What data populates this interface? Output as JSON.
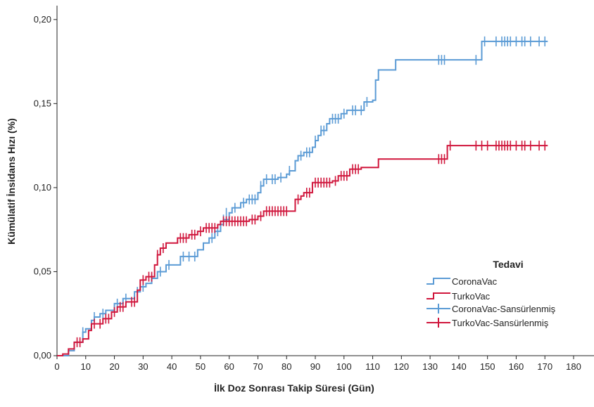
{
  "chart_data": {
    "type": "line",
    "step": true,
    "title": "",
    "xlabel": "İlk Doz Sonrası Takip Süresi (Gün)",
    "ylabel": "Kümülatif İnsidans Hızı (%)",
    "xlim": [
      0,
      180
    ],
    "ylim": [
      0,
      0.2
    ],
    "x_ticks": [
      0,
      10,
      20,
      30,
      40,
      50,
      60,
      70,
      80,
      90,
      100,
      110,
      120,
      130,
      140,
      150,
      160,
      170,
      180
    ],
    "x_tick_labels": [
      "0",
      "10",
      "20",
      "30",
      "40",
      "50",
      "60",
      "70",
      "80",
      "90",
      "100",
      "110",
      "120",
      "130",
      "140",
      "150",
      "160",
      "170",
      "180"
    ],
    "y_ticks": [
      0,
      0.05,
      0.1,
      0.15,
      0.2
    ],
    "y_tick_labels": [
      "0,00",
      "0,05",
      "0,10",
      "0,15",
      "0,20"
    ],
    "grid": false,
    "legend": {
      "title": "Tedavi",
      "position": "right",
      "entries": [
        "CoronaVac",
        "TurkoVac",
        "CoronaVac-Sansürlenmiş",
        "TurkoVac-Sansürlenmiş"
      ]
    },
    "series": [
      {
        "name": "CoronaVac",
        "color": "#5b9bd5",
        "steps": [
          [
            0,
            0
          ],
          [
            4,
            0.003
          ],
          [
            6,
            0.008
          ],
          [
            9,
            0.014
          ],
          [
            10,
            0.016
          ],
          [
            12,
            0.021
          ],
          [
            13,
            0.023
          ],
          [
            15,
            0.025
          ],
          [
            17,
            0.027
          ],
          [
            20,
            0.031
          ],
          [
            23,
            0.034
          ],
          [
            27,
            0.038
          ],
          [
            29,
            0.041
          ],
          [
            31,
            0.043
          ],
          [
            33,
            0.046
          ],
          [
            35,
            0.05
          ],
          [
            38,
            0.054
          ],
          [
            43,
            0.059
          ],
          [
            49,
            0.063
          ],
          [
            51,
            0.067
          ],
          [
            53,
            0.07
          ],
          [
            55,
            0.074
          ],
          [
            57,
            0.078
          ],
          [
            58,
            0.081
          ],
          [
            60,
            0.085
          ],
          [
            61,
            0.088
          ],
          [
            64,
            0.091
          ],
          [
            66,
            0.093
          ],
          [
            70,
            0.097
          ],
          [
            71,
            0.101
          ],
          [
            72,
            0.105
          ],
          [
            77,
            0.106
          ],
          [
            80,
            0.108
          ],
          [
            81,
            0.11
          ],
          [
            83,
            0.116
          ],
          [
            84,
            0.119
          ],
          [
            86,
            0.121
          ],
          [
            89,
            0.124
          ],
          [
            90,
            0.128
          ],
          [
            91,
            0.131
          ],
          [
            92,
            0.134
          ],
          [
            94,
            0.138
          ],
          [
            95,
            0.141
          ],
          [
            99,
            0.144
          ],
          [
            101,
            0.146
          ],
          [
            107,
            0.151
          ],
          [
            110,
            0.152
          ],
          [
            111,
            0.164
          ],
          [
            112,
            0.17
          ],
          [
            118,
            0.176
          ],
          [
            148,
            0.187
          ],
          [
            171,
            0.187
          ]
        ],
        "censored": [
          [
            9,
            0.014
          ],
          [
            13,
            0.023
          ],
          [
            16,
            0.025
          ],
          [
            21,
            0.031
          ],
          [
            24,
            0.034
          ],
          [
            28,
            0.038
          ],
          [
            30,
            0.041
          ],
          [
            33,
            0.046
          ],
          [
            36,
            0.05
          ],
          [
            39,
            0.054
          ],
          [
            44,
            0.059
          ],
          [
            46,
            0.059
          ],
          [
            48,
            0.059
          ],
          [
            54,
            0.07
          ],
          [
            56,
            0.074
          ],
          [
            58,
            0.081
          ],
          [
            59,
            0.085
          ],
          [
            62,
            0.088
          ],
          [
            65,
            0.091
          ],
          [
            67,
            0.093
          ],
          [
            68,
            0.093
          ],
          [
            69,
            0.093
          ],
          [
            71,
            0.101
          ],
          [
            73,
            0.105
          ],
          [
            75,
            0.105
          ],
          [
            76,
            0.105
          ],
          [
            78,
            0.106
          ],
          [
            81,
            0.11
          ],
          [
            85,
            0.119
          ],
          [
            87,
            0.121
          ],
          [
            88,
            0.121
          ],
          [
            90,
            0.128
          ],
          [
            92,
            0.134
          ],
          [
            93,
            0.134
          ],
          [
            96,
            0.141
          ],
          [
            97,
            0.141
          ],
          [
            98,
            0.141
          ],
          [
            100,
            0.144
          ],
          [
            103,
            0.146
          ],
          [
            104,
            0.146
          ],
          [
            106,
            0.146
          ],
          [
            108,
            0.151
          ],
          [
            133,
            0.176
          ],
          [
            134,
            0.176
          ],
          [
            135,
            0.176
          ],
          [
            146,
            0.176
          ],
          [
            149,
            0.187
          ],
          [
            153,
            0.187
          ],
          [
            155,
            0.187
          ],
          [
            156,
            0.187
          ],
          [
            157,
            0.187
          ],
          [
            158,
            0.187
          ],
          [
            160,
            0.187
          ],
          [
            162,
            0.187
          ],
          [
            163,
            0.187
          ],
          [
            165,
            0.187
          ],
          [
            168,
            0.187
          ],
          [
            170,
            0.187
          ]
        ]
      },
      {
        "name": "TurkoVac",
        "color": "#d0163c",
        "steps": [
          [
            0,
            0
          ],
          [
            2,
            0.001
          ],
          [
            4,
            0.004
          ],
          [
            6,
            0.008
          ],
          [
            9,
            0.01
          ],
          [
            11,
            0.015
          ],
          [
            12,
            0.019
          ],
          [
            16,
            0.022
          ],
          [
            19,
            0.026
          ],
          [
            21,
            0.029
          ],
          [
            24,
            0.032
          ],
          [
            28,
            0.039
          ],
          [
            29,
            0.045
          ],
          [
            31,
            0.047
          ],
          [
            34,
            0.054
          ],
          [
            35,
            0.06
          ],
          [
            36,
            0.064
          ],
          [
            38,
            0.067
          ],
          [
            42,
            0.07
          ],
          [
            46,
            0.072
          ],
          [
            49,
            0.074
          ],
          [
            51,
            0.076
          ],
          [
            56,
            0.078
          ],
          [
            57,
            0.08
          ],
          [
            67,
            0.081
          ],
          [
            70,
            0.083
          ],
          [
            72,
            0.086
          ],
          [
            83,
            0.093
          ],
          [
            85,
            0.095
          ],
          [
            86,
            0.097
          ],
          [
            89,
            0.103
          ],
          [
            96,
            0.104
          ],
          [
            98,
            0.107
          ],
          [
            102,
            0.111
          ],
          [
            106,
            0.112
          ],
          [
            112,
            0.117
          ],
          [
            136,
            0.125
          ],
          [
            171,
            0.125
          ]
        ],
        "censored": [
          [
            7,
            0.008
          ],
          [
            8,
            0.008
          ],
          [
            13,
            0.019
          ],
          [
            15,
            0.019
          ],
          [
            17,
            0.022
          ],
          [
            18,
            0.022
          ],
          [
            20,
            0.026
          ],
          [
            22,
            0.029
          ],
          [
            23,
            0.029
          ],
          [
            26,
            0.032
          ],
          [
            27,
            0.032
          ],
          [
            30,
            0.045
          ],
          [
            32,
            0.047
          ],
          [
            33,
            0.047
          ],
          [
            35,
            0.06
          ],
          [
            37,
            0.064
          ],
          [
            43,
            0.07
          ],
          [
            44,
            0.07
          ],
          [
            45,
            0.07
          ],
          [
            47,
            0.072
          ],
          [
            48,
            0.072
          ],
          [
            50,
            0.074
          ],
          [
            52,
            0.076
          ],
          [
            53,
            0.076
          ],
          [
            54,
            0.076
          ],
          [
            55,
            0.076
          ],
          [
            58,
            0.08
          ],
          [
            59,
            0.08
          ],
          [
            60,
            0.08
          ],
          [
            61,
            0.08
          ],
          [
            62,
            0.08
          ],
          [
            63,
            0.08
          ],
          [
            64,
            0.08
          ],
          [
            65,
            0.08
          ],
          [
            66,
            0.08
          ],
          [
            68,
            0.081
          ],
          [
            69,
            0.081
          ],
          [
            71,
            0.083
          ],
          [
            73,
            0.086
          ],
          [
            74,
            0.086
          ],
          [
            75,
            0.086
          ],
          [
            76,
            0.086
          ],
          [
            77,
            0.086
          ],
          [
            78,
            0.086
          ],
          [
            79,
            0.086
          ],
          [
            80,
            0.086
          ],
          [
            84,
            0.093
          ],
          [
            87,
            0.097
          ],
          [
            88,
            0.097
          ],
          [
            90,
            0.103
          ],
          [
            91,
            0.103
          ],
          [
            92,
            0.103
          ],
          [
            93,
            0.103
          ],
          [
            94,
            0.103
          ],
          [
            95,
            0.103
          ],
          [
            97,
            0.104
          ],
          [
            99,
            0.107
          ],
          [
            100,
            0.107
          ],
          [
            101,
            0.107
          ],
          [
            103,
            0.111
          ],
          [
            104,
            0.111
          ],
          [
            105,
            0.111
          ],
          [
            133,
            0.117
          ],
          [
            134,
            0.117
          ],
          [
            135,
            0.117
          ],
          [
            137,
            0.125
          ],
          [
            146,
            0.125
          ],
          [
            148,
            0.125
          ],
          [
            150,
            0.125
          ],
          [
            153,
            0.125
          ],
          [
            154,
            0.125
          ],
          [
            155,
            0.125
          ],
          [
            156,
            0.125
          ],
          [
            157,
            0.125
          ],
          [
            158,
            0.125
          ],
          [
            160,
            0.125
          ],
          [
            162,
            0.125
          ],
          [
            163,
            0.125
          ],
          [
            165,
            0.125
          ],
          [
            168,
            0.125
          ],
          [
            170,
            0.125
          ]
        ]
      }
    ]
  }
}
